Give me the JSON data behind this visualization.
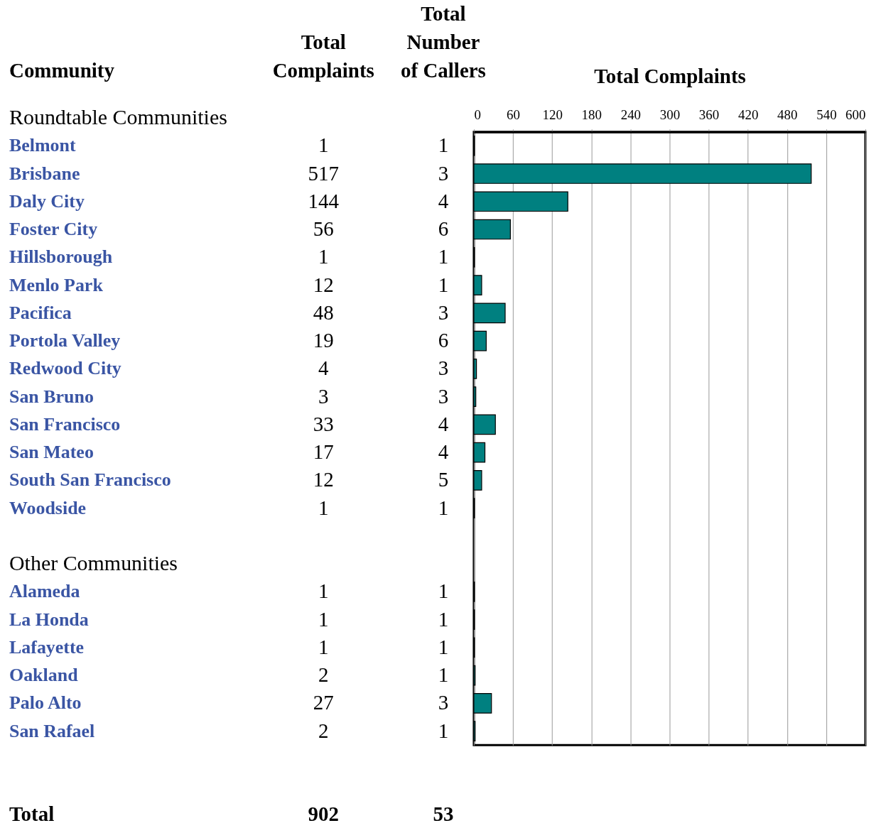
{
  "chart_data": {
    "type": "bar",
    "orientation": "horizontal",
    "ylabel": "Community",
    "x2label": "Total Complaints",
    "categories": [
      "Belmont",
      "Brisbane",
      "Daly City",
      "Foster City",
      "Hillsborough",
      "Menlo Park",
      "Pacifica",
      "Portola Valley",
      "Redwood City",
      "San Bruno",
      "San Francisco",
      "San Mateo",
      "South San Francisco",
      "Woodside",
      null,
      null,
      "Alameda",
      "La Honda",
      "Lafayette",
      "Oakland",
      "Palo Alto",
      "San Rafael"
    ],
    "series": [
      {
        "name": "Total Complaints",
        "color": "#008080",
        "values": [
          1,
          517,
          144,
          56,
          1,
          12,
          48,
          19,
          4,
          3,
          33,
          17,
          12,
          1,
          null,
          null,
          1,
          1,
          1,
          2,
          27,
          2
        ]
      }
    ],
    "x2lim": [
      0,
      600
    ],
    "x2ticks": [
      0,
      60,
      120,
      180,
      240,
      300,
      360,
      420,
      480,
      540,
      600
    ],
    "grid": "x",
    "data_labels": true,
    "annotations": [
      "Roundtable Communities",
      "Other Communities",
      "Total",
      "902",
      "Total Number of Callers",
      "53",
      "1",
      "3",
      "4",
      "6",
      "1",
      "1",
      "3",
      "6",
      "3",
      "3",
      "4",
      "4",
      "5",
      "1",
      "1",
      "1",
      "1",
      "1",
      "3",
      "1"
    ]
  }
}
